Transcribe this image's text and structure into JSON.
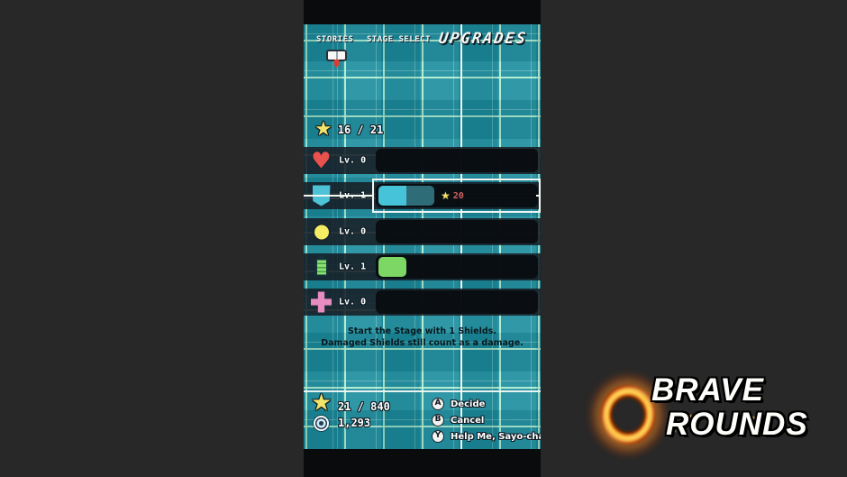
{
  "glyphs": {
    "star": "★",
    "heart": "♥"
  },
  "game": {
    "nav": {
      "stories": "STORIES",
      "stage_select": "STAGE SELECT",
      "upgrades": "UPGRADES"
    },
    "upgrade_stars": "16 / 21",
    "rows": [
      {
        "name": "health",
        "icon": "heart-icon",
        "level": "Lv. 0",
        "filled_segments": 0,
        "selected": false
      },
      {
        "name": "shield",
        "icon": "shield-icon",
        "level": "Lv. 1",
        "filled_segments": 1,
        "pending_segments": 1,
        "next_cost": "20",
        "selected": true
      },
      {
        "name": "bomb",
        "icon": "bomb-icon",
        "level": "Lv. 0",
        "filled_segments": 0,
        "selected": false
      },
      {
        "name": "battery",
        "icon": "battery-icon",
        "level": "Lv. 1",
        "filled_segments": 1,
        "selected": false
      },
      {
        "name": "heal",
        "icon": "cross-icon",
        "level": "Lv. 0",
        "filled_segments": 0,
        "selected": false
      }
    ],
    "description": {
      "line1": "Start the Stage with 1 Shields.",
      "line2": "Damaged Shields still count as a damage."
    },
    "hud": {
      "stars_total": "21 / 840",
      "coins": "1,293"
    },
    "hints": [
      {
        "button": "A",
        "label": "Decide"
      },
      {
        "button": "B",
        "label": "Cancel"
      },
      {
        "button": "Y",
        "label": "Help Me, Sayo-chan!!!"
      }
    ]
  },
  "logo": {
    "line1": "BRAVE",
    "line2": "ROUNDS"
  },
  "colors": {
    "background": "#282828",
    "grid_teal": "#1b8c9d",
    "grid_line_mint": "#baf4d4",
    "axis_white": "#f3f8f4",
    "row_dark": "#171d24",
    "segment_cyan": "#46c3d9",
    "segment_teal": "#2e6d78",
    "segment_green": "#7cd765",
    "star_yellow": "#f2e468",
    "cost_red": "#c7625e",
    "heart_red": "#e7514e",
    "shield_cyan": "#4ec2d6",
    "bomb_yellow": "#f4ec63",
    "cross_pink": "#e78cc0",
    "flame_orange": "#e06a10"
  }
}
